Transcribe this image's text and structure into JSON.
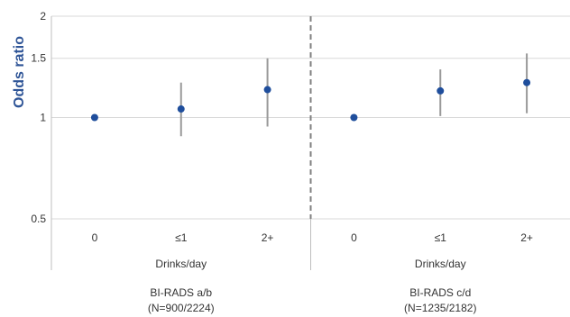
{
  "chart_data": {
    "type": "scatter",
    "ylabel": "Odds ratio",
    "yscale": "log",
    "ylim": [
      0.5,
      2
    ],
    "yticks": [
      "0.5",
      "1",
      "1.5",
      "2"
    ],
    "grid": true,
    "colors": {
      "point": "#1f4e9c",
      "errorbar": "#999999",
      "grid": "#d9d9d9",
      "divider": "#808080",
      "ylabel": "#2f5597"
    },
    "groups": [
      {
        "label_line1": "BI-RADS a/b",
        "label_line2": "(N=900/2224)",
        "xlabel": "Drinks/day",
        "categories": [
          "0",
          "≤1",
          "2+"
        ],
        "values": [
          1.0,
          1.06,
          1.21
        ],
        "lower": [
          null,
          0.88,
          0.94
        ],
        "upper": [
          null,
          1.27,
          1.5
        ]
      },
      {
        "label_line1": "BI-RADS c/d",
        "label_line2": "(N=1235/2182)",
        "xlabel": "Drinks/day",
        "categories": [
          "0",
          "≤1",
          "2+"
        ],
        "values": [
          1.0,
          1.2,
          1.27
        ],
        "lower": [
          null,
          1.01,
          1.03
        ],
        "upper": [
          null,
          1.39,
          1.55
        ]
      }
    ]
  }
}
